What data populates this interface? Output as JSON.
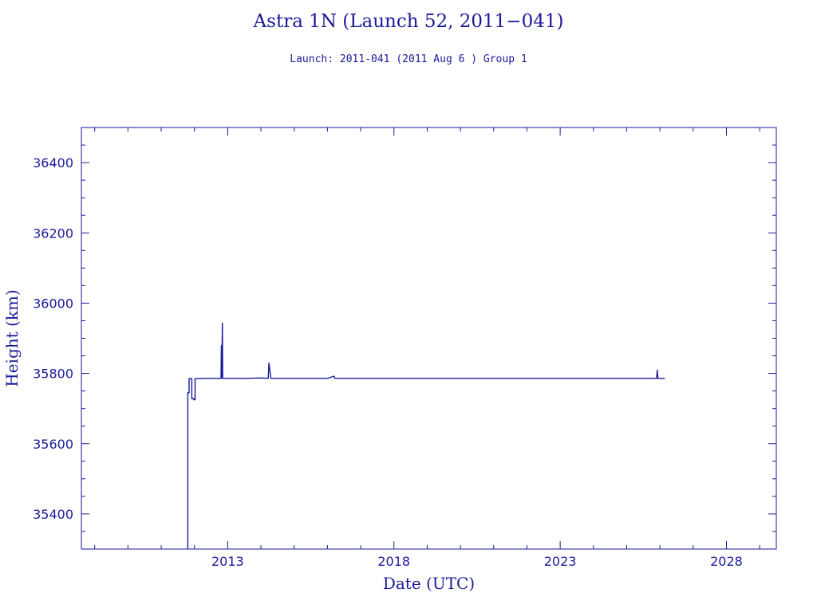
{
  "chart_data": {
    "type": "line",
    "title": "Astra 1N (Launch 52, 2011−041)",
    "subtitle": "Launch: 2011-041  (2011 Aug  6 )  Group 1",
    "xlabel": "Date (UTC)",
    "ylabel": "Height (km)",
    "x_axis": {
      "unit": "year",
      "range": [
        2008.6,
        2029.5
      ],
      "ticks": [
        2013,
        2018,
        2023,
        2028
      ],
      "tick_labels": [
        "2013",
        "2018",
        "2023",
        "2028"
      ]
    },
    "y_axis": {
      "range": [
        35300,
        36500
      ],
      "ticks": [
        35400,
        35600,
        35800,
        36000,
        36200,
        36400
      ],
      "tick_labels": [
        "35400",
        "35600",
        "35800",
        "36000",
        "36200",
        "36400"
      ]
    },
    "grid": false,
    "series": [
      {
        "values": [
          [
            2011.8,
            35300
          ],
          [
            2011.8,
            35745
          ],
          [
            2011.84,
            35745
          ],
          [
            2011.84,
            35785
          ],
          [
            2011.92,
            35785
          ],
          [
            2011.92,
            35728
          ],
          [
            2011.98,
            35728
          ],
          [
            2011.98,
            35725
          ],
          [
            2012.02,
            35725
          ],
          [
            2012.02,
            35785
          ],
          [
            2012.4,
            35786
          ],
          [
            2012.8,
            35786
          ],
          [
            2012.81,
            35880
          ],
          [
            2012.82,
            35786
          ],
          [
            2012.84,
            35945
          ],
          [
            2012.85,
            35786
          ],
          [
            2013.5,
            35786
          ],
          [
            2014.0,
            35787
          ],
          [
            2014.22,
            35786
          ],
          [
            2014.24,
            35830
          ],
          [
            2014.27,
            35808
          ],
          [
            2014.3,
            35786
          ],
          [
            2015.0,
            35786
          ],
          [
            2016.0,
            35786
          ],
          [
            2016.2,
            35792
          ],
          [
            2016.22,
            35786
          ],
          [
            2018.0,
            35786
          ],
          [
            2020.0,
            35786
          ],
          [
            2022.0,
            35786
          ],
          [
            2024.0,
            35786
          ],
          [
            2025.9,
            35786
          ],
          [
            2025.92,
            35810
          ],
          [
            2025.94,
            35786
          ],
          [
            2026.15,
            35786
          ]
        ],
        "color": "#1a1a9a"
      }
    ],
    "colors": {
      "axis": "#1a1a9a",
      "line": "#1a1a9a",
      "text": "#1a1a9a"
    }
  }
}
